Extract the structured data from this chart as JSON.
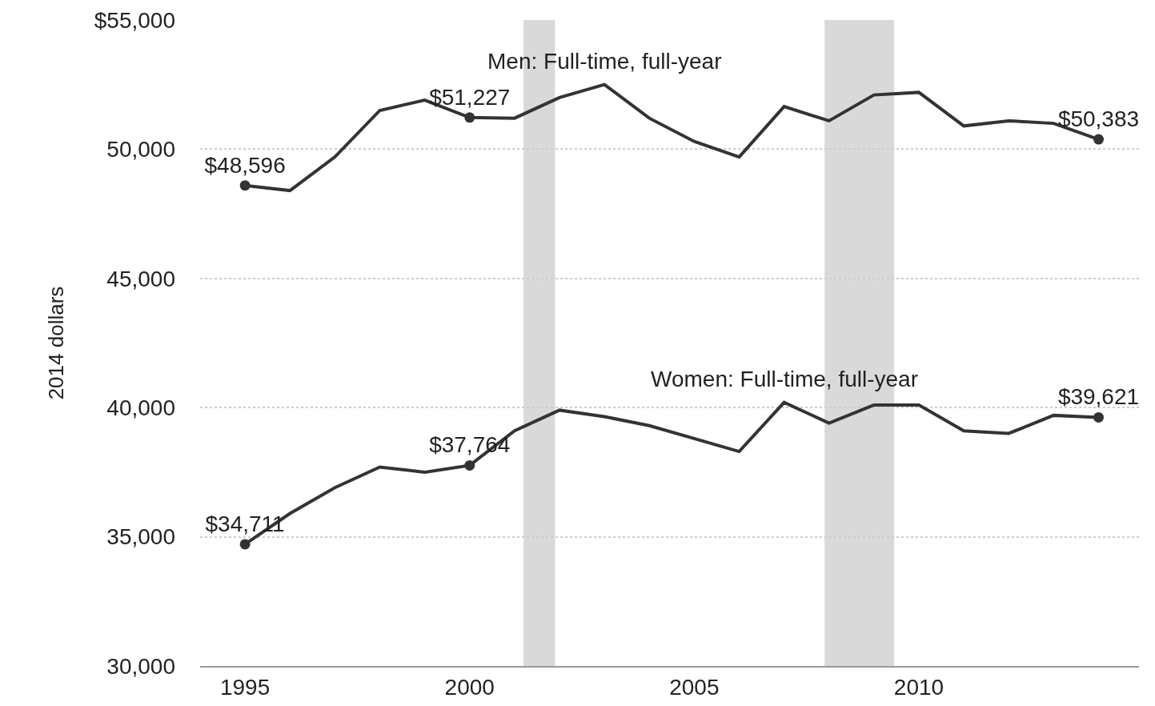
{
  "chart_data": {
    "type": "line",
    "ylabel": "2014 dollars",
    "x": [
      1995,
      1996,
      1997,
      1998,
      1999,
      2000,
      2001,
      2002,
      2003,
      2004,
      2005,
      2006,
      2007,
      2008,
      2009,
      2010,
      2011,
      2012,
      2013,
      2014
    ],
    "series": [
      {
        "name": "Men: Full-time, full-year",
        "color": "#333333",
        "values": [
          48596,
          48400,
          49700,
          51500,
          51900,
          51227,
          51200,
          52000,
          52500,
          51200,
          50300,
          49700,
          51650,
          51100,
          52100,
          52200,
          50900,
          51100,
          51000,
          50383
        ],
        "value_labels": [
          "$48,596",
          null,
          null,
          null,
          null,
          "$51,227",
          null,
          null,
          null,
          null,
          null,
          null,
          null,
          null,
          null,
          null,
          null,
          null,
          null,
          "$50,383"
        ]
      },
      {
        "name": "Women: Full-time, full-year",
        "color": "#333333",
        "values": [
          34711,
          35900,
          36900,
          37700,
          37500,
          37764,
          39100,
          39900,
          39650,
          39300,
          38800,
          38300,
          40200,
          39400,
          40100,
          40100,
          39100,
          39000,
          39700,
          39621
        ],
        "value_labels": [
          "$34,711",
          null,
          null,
          null,
          null,
          "$37,764",
          null,
          null,
          null,
          null,
          null,
          null,
          null,
          null,
          null,
          null,
          null,
          null,
          null,
          "$39,621"
        ]
      }
    ],
    "bands": [
      {
        "axis": "x",
        "from": 2001.2,
        "to": 2001.9,
        "color": "#d9d9d9"
      },
      {
        "axis": "x",
        "from": 2007.9,
        "to": 2009.45,
        "color": "#d9d9d9"
      }
    ],
    "xlim": [
      1994,
      2014.9
    ],
    "xticks": [
      1995,
      2000,
      2005,
      2010
    ],
    "ylim": [
      30000,
      55000
    ],
    "yticks": [
      {
        "value": 30000,
        "label": "30,000"
      },
      {
        "value": 35000,
        "label": "35,000"
      },
      {
        "value": 40000,
        "label": "40,000"
      },
      {
        "value": 45000,
        "label": "45,000"
      },
      {
        "value": 50000,
        "label": "50,000"
      },
      {
        "value": 55000,
        "label": "$55,000"
      }
    ],
    "grid": "y",
    "legend": false,
    "line_style": "solid"
  }
}
